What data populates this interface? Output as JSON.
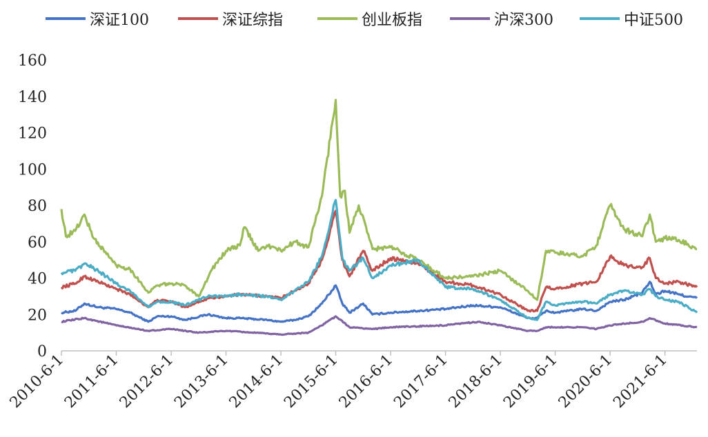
{
  "chart_data": {
    "type": "line",
    "title": "",
    "xlabel": "",
    "ylabel": "",
    "ylim": [
      0,
      160
    ],
    "yticks": [
      "0",
      "20",
      "40",
      "60",
      "80",
      "100",
      "120",
      "140",
      "160"
    ],
    "xticks": [
      "2010-6-1",
      "2011-6-1",
      "2012-6-1",
      "2013-6-1",
      "2014-6-1",
      "2015-6-1",
      "2016-6-1",
      "2017-6-1",
      "2018-6-1",
      "2019-6-1",
      "2020-6-1",
      "2021-6-1"
    ],
    "xlim": [
      "2010-06-01",
      "2021-12-31"
    ],
    "grid": false,
    "legend_position": "top",
    "series": [
      {
        "name": "深证100",
        "color": "#4472C4",
        "points": [
          [
            "2010-06-01",
            21
          ],
          [
            "2010-09-01",
            22
          ],
          [
            "2010-11-01",
            26
          ],
          [
            "2011-02-01",
            24
          ],
          [
            "2011-06-01",
            23
          ],
          [
            "2011-09-01",
            21
          ],
          [
            "2012-01-01",
            16
          ],
          [
            "2012-03-01",
            19
          ],
          [
            "2012-06-01",
            19
          ],
          [
            "2012-09-01",
            17
          ],
          [
            "2013-02-01",
            20
          ],
          [
            "2013-06-01",
            18
          ],
          [
            "2013-09-01",
            18
          ],
          [
            "2014-03-01",
            17
          ],
          [
            "2014-06-01",
            16
          ],
          [
            "2014-09-01",
            17
          ],
          [
            "2014-12-01",
            19
          ],
          [
            "2015-03-01",
            26
          ],
          [
            "2015-06-01",
            36
          ],
          [
            "2015-07-15",
            26
          ],
          [
            "2015-09-01",
            21
          ],
          [
            "2015-12-01",
            26
          ],
          [
            "2016-02-01",
            20
          ],
          [
            "2016-06-01",
            21
          ],
          [
            "2016-12-01",
            22
          ],
          [
            "2017-06-01",
            23
          ],
          [
            "2017-12-01",
            25
          ],
          [
            "2018-06-01",
            24
          ],
          [
            "2018-12-01",
            18
          ],
          [
            "2019-02-01",
            18
          ],
          [
            "2019-04-01",
            22
          ],
          [
            "2019-06-01",
            21
          ],
          [
            "2019-12-01",
            23
          ],
          [
            "2020-03-01",
            22
          ],
          [
            "2020-06-01",
            27
          ],
          [
            "2020-09-01",
            28
          ],
          [
            "2021-01-01",
            32
          ],
          [
            "2021-02-20",
            38
          ],
          [
            "2021-04-01",
            31
          ],
          [
            "2021-06-01",
            33
          ],
          [
            "2021-09-01",
            31
          ],
          [
            "2021-12-31",
            29
          ]
        ]
      },
      {
        "name": "深证综指",
        "color": "#C0504D",
        "points": [
          [
            "2010-06-01",
            35
          ],
          [
            "2010-09-01",
            37
          ],
          [
            "2010-11-01",
            41
          ],
          [
            "2011-02-01",
            38
          ],
          [
            "2011-06-01",
            34
          ],
          [
            "2011-09-01",
            31
          ],
          [
            "2012-01-01",
            24
          ],
          [
            "2012-03-01",
            28
          ],
          [
            "2012-06-01",
            27
          ],
          [
            "2012-09-01",
            24
          ],
          [
            "2013-02-01",
            29
          ],
          [
            "2013-06-01",
            30
          ],
          [
            "2013-09-01",
            31
          ],
          [
            "2014-03-01",
            30
          ],
          [
            "2014-06-01",
            29
          ],
          [
            "2014-09-01",
            33
          ],
          [
            "2014-12-01",
            37
          ],
          [
            "2015-03-01",
            50
          ],
          [
            "2015-06-01",
            77
          ],
          [
            "2015-07-15",
            50
          ],
          [
            "2015-09-01",
            41
          ],
          [
            "2015-12-01",
            55
          ],
          [
            "2016-02-01",
            44
          ],
          [
            "2016-06-01",
            51
          ],
          [
            "2016-12-01",
            48
          ],
          [
            "2017-06-01",
            38
          ],
          [
            "2017-12-01",
            36
          ],
          [
            "2018-06-01",
            31
          ],
          [
            "2018-12-01",
            22
          ],
          [
            "2019-02-01",
            22
          ],
          [
            "2019-04-01",
            35
          ],
          [
            "2019-06-01",
            34
          ],
          [
            "2019-12-01",
            37
          ],
          [
            "2020-03-01",
            38
          ],
          [
            "2020-06-01",
            52
          ],
          [
            "2020-09-01",
            47
          ],
          [
            "2021-01-01",
            46
          ],
          [
            "2021-02-20",
            51
          ],
          [
            "2021-04-01",
            40
          ],
          [
            "2021-06-01",
            37
          ],
          [
            "2021-09-01",
            38
          ],
          [
            "2021-12-31",
            35
          ]
        ]
      },
      {
        "name": "创业板指",
        "color": "#9BBB59",
        "points": [
          [
            "2010-06-01",
            78
          ],
          [
            "2010-07-01",
            63
          ],
          [
            "2010-09-01",
            66
          ],
          [
            "2010-11-01",
            75
          ],
          [
            "2011-01-01",
            62
          ],
          [
            "2011-06-01",
            47
          ],
          [
            "2011-09-01",
            45
          ],
          [
            "2012-01-01",
            32
          ],
          [
            "2012-03-01",
            36
          ],
          [
            "2012-06-01",
            37
          ],
          [
            "2012-09-01",
            36
          ],
          [
            "2012-12-01",
            30
          ],
          [
            "2013-03-01",
            45
          ],
          [
            "2013-06-01",
            55
          ],
          [
            "2013-09-01",
            58
          ],
          [
            "2013-10-01",
            68
          ],
          [
            "2014-01-01",
            55
          ],
          [
            "2014-03-01",
            58
          ],
          [
            "2014-06-01",
            55
          ],
          [
            "2014-09-01",
            60
          ],
          [
            "2014-12-01",
            57
          ],
          [
            "2015-03-01",
            85
          ],
          [
            "2015-06-01",
            138
          ],
          [
            "2015-07-01",
            85
          ],
          [
            "2015-08-01",
            88
          ],
          [
            "2015-09-01",
            65
          ],
          [
            "2015-11-01",
            80
          ],
          [
            "2016-02-01",
            56
          ],
          [
            "2016-06-01",
            57
          ],
          [
            "2016-12-01",
            50
          ],
          [
            "2017-06-01",
            40
          ],
          [
            "2017-12-01",
            41
          ],
          [
            "2018-06-01",
            44
          ],
          [
            "2018-12-01",
            33
          ],
          [
            "2019-02-01",
            28
          ],
          [
            "2019-04-01",
            55
          ],
          [
            "2019-06-01",
            54
          ],
          [
            "2019-12-01",
            52
          ],
          [
            "2020-03-01",
            58
          ],
          [
            "2020-06-01",
            80
          ],
          [
            "2020-09-01",
            67
          ],
          [
            "2021-01-01",
            63
          ],
          [
            "2021-02-20",
            75
          ],
          [
            "2021-04-01",
            60
          ],
          [
            "2021-06-01",
            62
          ],
          [
            "2021-09-01",
            61
          ],
          [
            "2021-12-31",
            56
          ]
        ]
      },
      {
        "name": "沪深300",
        "color": "#8064A2",
        "points": [
          [
            "2010-06-01",
            16
          ],
          [
            "2010-11-01",
            18
          ],
          [
            "2011-06-01",
            14
          ],
          [
            "2012-01-01",
            11
          ],
          [
            "2012-06-01",
            12
          ],
          [
            "2012-12-01",
            10
          ],
          [
            "2013-06-01",
            11
          ],
          [
            "2014-06-01",
            9
          ],
          [
            "2014-12-01",
            10
          ],
          [
            "2015-03-01",
            14
          ],
          [
            "2015-06-01",
            19
          ],
          [
            "2015-09-01",
            13
          ],
          [
            "2016-02-01",
            12
          ],
          [
            "2016-06-01",
            13
          ],
          [
            "2017-06-01",
            14
          ],
          [
            "2018-01-01",
            16
          ],
          [
            "2018-06-01",
            14
          ],
          [
            "2018-12-01",
            11
          ],
          [
            "2019-02-01",
            11
          ],
          [
            "2019-04-01",
            13
          ],
          [
            "2019-12-01",
            13
          ],
          [
            "2020-03-01",
            12
          ],
          [
            "2020-06-01",
            14
          ],
          [
            "2021-01-01",
            16
          ],
          [
            "2021-02-20",
            18
          ],
          [
            "2021-06-01",
            15
          ],
          [
            "2021-12-31",
            13
          ]
        ]
      },
      {
        "name": "中证500",
        "color": "#4BACC6",
        "points": [
          [
            "2010-06-01",
            43
          ],
          [
            "2010-09-01",
            44
          ],
          [
            "2010-11-01",
            48
          ],
          [
            "2011-02-01",
            44
          ],
          [
            "2011-06-01",
            37
          ],
          [
            "2011-09-01",
            33
          ],
          [
            "2012-01-01",
            24
          ],
          [
            "2012-03-01",
            27
          ],
          [
            "2012-06-01",
            27
          ],
          [
            "2012-09-01",
            25
          ],
          [
            "2013-02-01",
            30
          ],
          [
            "2013-06-01",
            30
          ],
          [
            "2013-09-01",
            31
          ],
          [
            "2014-03-01",
            30
          ],
          [
            "2014-06-01",
            28
          ],
          [
            "2014-09-01",
            33
          ],
          [
            "2014-12-01",
            38
          ],
          [
            "2015-03-01",
            52
          ],
          [
            "2015-06-01",
            83
          ],
          [
            "2015-07-15",
            51
          ],
          [
            "2015-09-01",
            44
          ],
          [
            "2015-12-01",
            51
          ],
          [
            "2016-02-01",
            40
          ],
          [
            "2016-06-01",
            47
          ],
          [
            "2016-12-01",
            50
          ],
          [
            "2017-06-01",
            35
          ],
          [
            "2017-12-01",
            34
          ],
          [
            "2018-06-01",
            28
          ],
          [
            "2018-12-01",
            18
          ],
          [
            "2019-02-01",
            17
          ],
          [
            "2019-04-01",
            27
          ],
          [
            "2019-06-01",
            25
          ],
          [
            "2019-12-01",
            27
          ],
          [
            "2020-03-01",
            26
          ],
          [
            "2020-06-01",
            31
          ],
          [
            "2020-09-01",
            33
          ],
          [
            "2021-01-01",
            31
          ],
          [
            "2021-02-20",
            34
          ],
          [
            "2021-04-01",
            30
          ],
          [
            "2021-06-01",
            28
          ],
          [
            "2021-09-01",
            27
          ],
          [
            "2021-12-31",
            21
          ]
        ]
      }
    ]
  }
}
